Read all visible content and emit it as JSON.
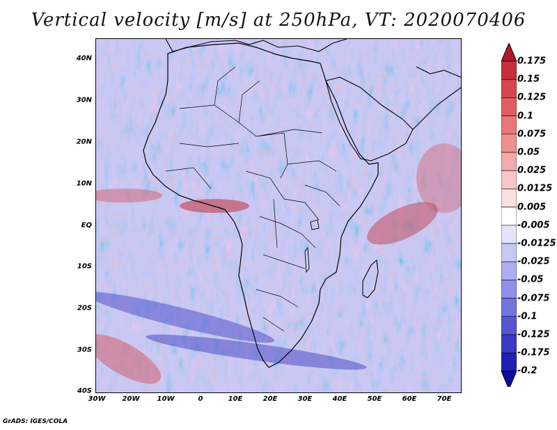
{
  "title": "Vertical velocity [m/s] at 250hPa, VT: 2020070406",
  "map": {
    "region": "Africa and surrounding oceans",
    "lon_range": [
      -30,
      75
    ],
    "lat_range": [
      -40,
      45
    ],
    "lat_ticks": [
      "40N",
      "30N",
      "20N",
      "10N",
      "EQ",
      "10S",
      "20S",
      "30S",
      "40S"
    ],
    "lon_ticks": [
      "30W",
      "20W",
      "10W",
      "0",
      "10E",
      "20E",
      "30E",
      "40E",
      "50E",
      "60E",
      "70E"
    ]
  },
  "colorbar": {
    "labels": [
      "0.175",
      "0.15",
      "0.125",
      "0.1",
      "0.075",
      "0.05",
      "0.025",
      "0.0125",
      "0.005",
      "-0.005",
      "-0.0125",
      "-0.025",
      "-0.05",
      "-0.075",
      "-0.1",
      "-0.125",
      "-0.175",
      "-0.2"
    ],
    "colors": [
      "#b2182b",
      "#c5303a",
      "#d6474f",
      "#e05e62",
      "#e87777",
      "#ef9090",
      "#f4aaaa",
      "#f8c6c6",
      "#fbe0e0",
      "#ffffff",
      "#e3e3fb",
      "#c8c8f6",
      "#acacf0",
      "#9090e8",
      "#7474de",
      "#5656d2",
      "#3a3ac4",
      "#2020b4",
      "#0c0ca0"
    ]
  },
  "footer": "GrADS: IGES/COLA"
}
